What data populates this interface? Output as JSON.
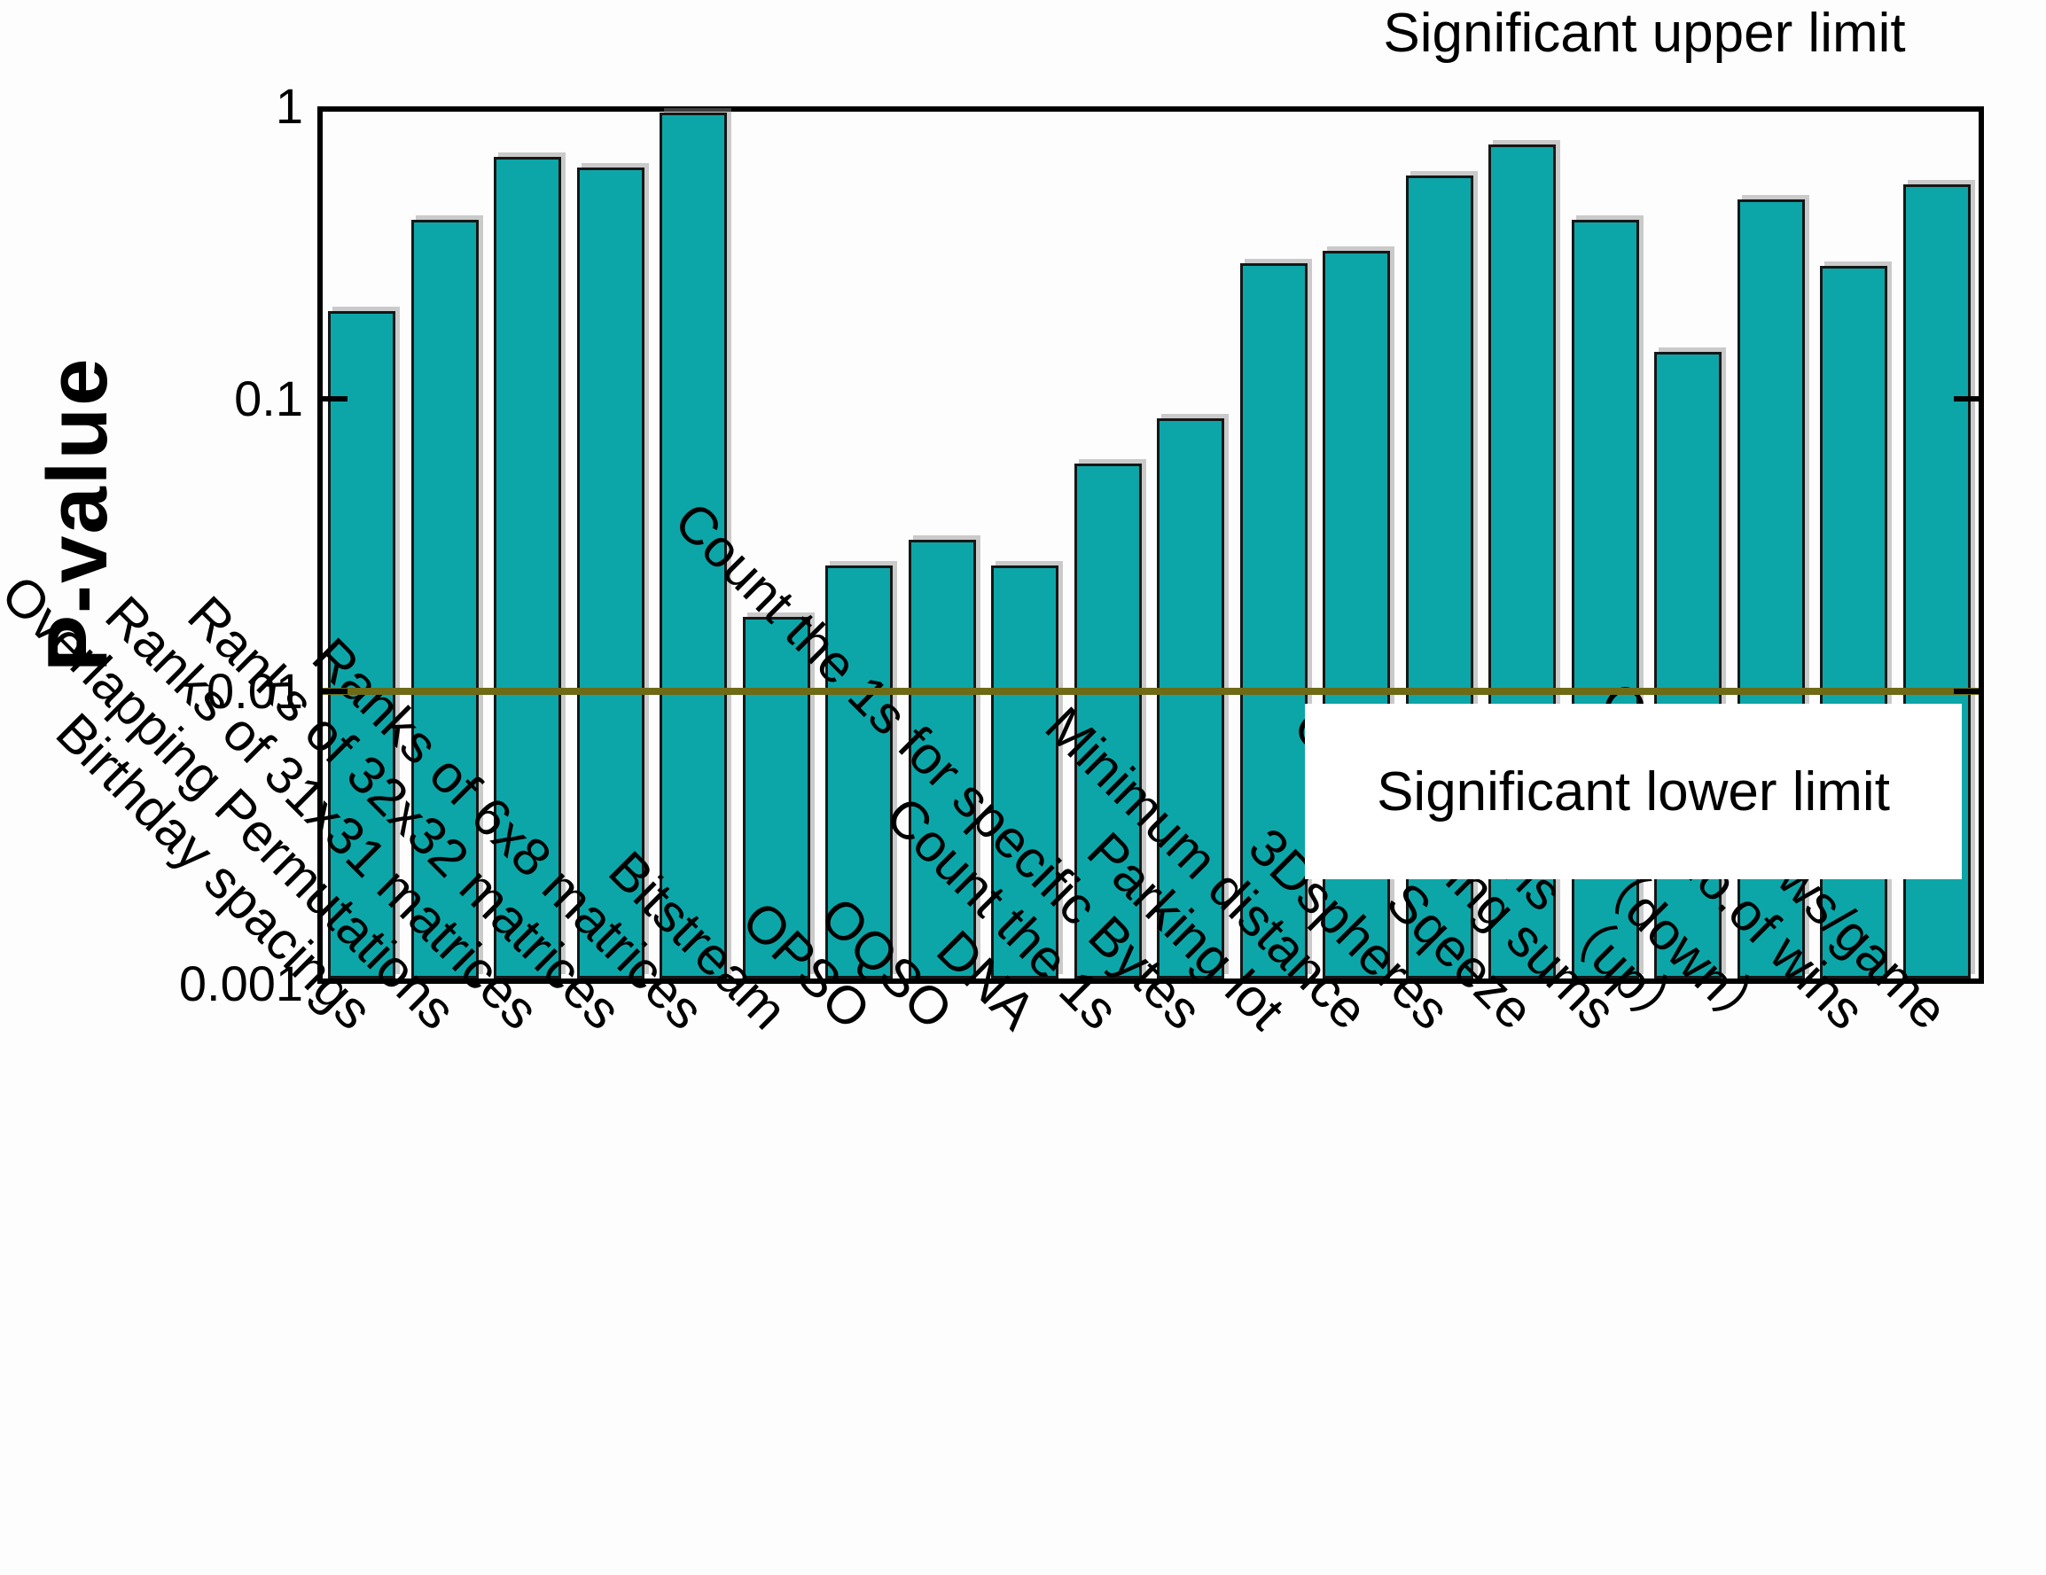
{
  "figure": {
    "axis": {
      "ylabel": "P-value",
      "yticks": [
        "1",
        "0.1",
        "0.01",
        "0.001"
      ]
    },
    "annotations": {
      "upper": "Significant upper limit",
      "lower": "Significant lower limit"
    },
    "colors": {
      "bar_fill": "#0da6a8",
      "bar_edge": "#161616",
      "frame": "#000000",
      "reference_line": "#6e6a15",
      "background": "#fdfdfd"
    }
  },
  "chart_data": {
    "type": "bar",
    "title": "",
    "xlabel": "",
    "ylabel": "P-value",
    "yscale": "log",
    "ylim": [
      0.001,
      1
    ],
    "grid": false,
    "legend": false,
    "categories": [
      "Birthday spacings",
      "Overlapping Permutations",
      "Ranks of 31x31 matrices",
      "Ranks of 32x32 matrices",
      "Ranks of 6x8 matrices",
      "Bitstream",
      "OPSO",
      "OQSO",
      "DNA",
      "Count the 1s",
      "Count the 1s for specific Bytes",
      "Parking lot",
      "Minimum distance",
      "3Dspheres",
      "Sqeeze",
      "Overlapping sums",
      "Runs （up）",
      "Runs （down）",
      "Craps-No.of wins",
      "Craps-throws/game"
    ],
    "values": [
      0.2,
      0.41,
      0.67,
      0.62,
      0.95,
      0.018,
      0.027,
      0.033,
      0.027,
      0.06,
      0.086,
      0.29,
      0.32,
      0.58,
      0.74,
      0.41,
      0.145,
      0.48,
      0.285,
      0.54
    ],
    "reference_line": {
      "value": 0.01,
      "upper_label": "Significant upper limit",
      "lower_label": "Significant lower limit"
    }
  }
}
